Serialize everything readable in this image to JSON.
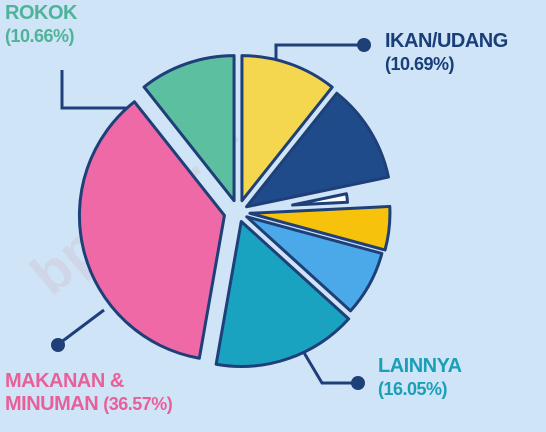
{
  "chart_data": {
    "type": "pie",
    "categories": [
      "IKAN/UDANG",
      null,
      null,
      null,
      null,
      "LAINNYA",
      "MAKANAN & MINUMAN",
      "ROKOK"
    ],
    "values": [
      10.69,
      11.03,
      2.5,
      5,
      7.5,
      16.05,
      36.57,
      10.66
    ],
    "value_labels": [
      "(10.69%)",
      null,
      null,
      null,
      null,
      "(16.05%)",
      "(36.57%)",
      "(10.66%)"
    ],
    "colors": [
      "#f5d74f",
      "#1f4b8a",
      "#ffffff",
      "#f7c20c",
      "#4ba9e9",
      "#1aa2c1",
      "#ee69a6",
      "#5cbf9f"
    ],
    "watermark": "bps.go.id"
  }
}
